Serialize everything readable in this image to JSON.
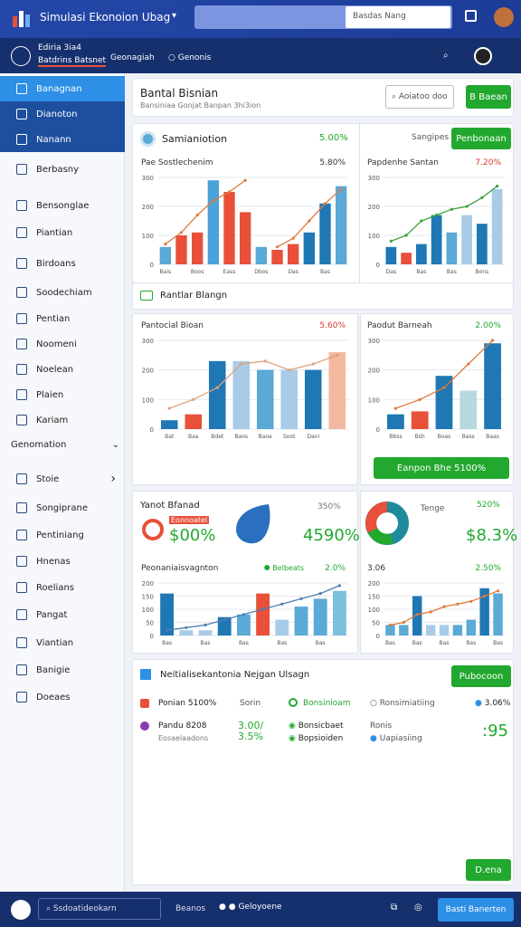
{
  "topbar": {
    "title": "Simulasi Ekonoion Ubag",
    "search": "Basdas Nang"
  },
  "subbar": {
    "line1": "Ediria 3ia4",
    "line2": "Batdrins Batsnet",
    "tab1": "Geonagiah",
    "tab2": "Genonis"
  },
  "sidebar": {
    "items": [
      "Banagnan",
      "Dianoton",
      "Nanann",
      "Berbasny",
      "Bensonglae",
      "Piantian",
      "Birdoans",
      "Soodechiam",
      "Pentian",
      "Noomeni",
      "Noelean",
      "Plaien",
      "Kariam"
    ],
    "section": "Genomation",
    "items2": [
      "Stoie",
      "Songiprane",
      "Pentiniang",
      "Hnenas",
      "Roelians",
      "Pangat",
      "Viantian",
      "Banigie",
      "Doeaes"
    ]
  },
  "header": {
    "title": "Bantal Bisnian",
    "subtitle": "Bansiniaa Gonjat Banpan 3hi3ion",
    "search": "Aoiatoo doo",
    "button": "B Baean"
  },
  "panel1": {
    "title": "Samianiotion",
    "value": "5.00%",
    "right_title": "Sangipes",
    "button": "Penbonaan"
  },
  "section2": {
    "title": "Rantlar Blangn"
  },
  "panel2": {
    "button": "Eanpon Bhe 5100%"
  },
  "panel3": {
    "left_title": "Yanot Bfanad",
    "left_tag": "Eonnoatel",
    "left_value": "$00%",
    "mid_small": "350%",
    "mid_value": "4590%",
    "right_title": "Tenge",
    "right_small": "520%",
    "right_value": "$8.3%"
  },
  "list": {
    "title": "Neitialisekantonia Nejgan Ulsagn",
    "button": "Pubocoon",
    "footer_button": "D.ena",
    "items": [
      "Ponian 5100%",
      "Sorin",
      "Bonsinioam",
      "Ronsimiatiing",
      "3.06%",
      "Pandu 8208",
      "Eosaeiaadons",
      "3.00/",
      "3.5%",
      "Bonsicbaet",
      "Bopsioiden",
      "Ronis",
      "Uapiasiing",
      ":95"
    ]
  },
  "bottombar": {
    "search": "Ssdoatideokarn",
    "link1": "Beanos",
    "link2": "Geloyoene",
    "button": "Basti Banerten"
  },
  "chart_data": [
    {
      "type": "bar",
      "title": "Pae Sostlechenim",
      "value": "5.80%",
      "value_color": "#333333",
      "ylim": [
        0,
        300
      ],
      "yticks": [
        0,
        100,
        200,
        300
      ],
      "categories": [
        "Bais",
        null,
        "Boos",
        null,
        "Eass",
        null,
        "Dbos",
        null,
        "Das",
        null,
        "Bas",
        null
      ],
      "values": [
        60,
        100,
        110,
        290,
        250,
        180,
        60,
        50,
        70,
        110,
        210,
        270
      ],
      "colors": [
        "#5aa9d6",
        "#e8503a",
        "#e8503a",
        "#4aa3d8",
        "#e8503a",
        "#e8503a",
        "#5aa9d6",
        "#e8503a",
        "#e8503a",
        "#1f77b4",
        "#1f77b4",
        "#5aa9d6"
      ],
      "line": [
        70,
        110,
        170,
        220,
        250,
        290,
        null,
        60,
        90,
        150,
        210,
        260
      ],
      "line_color": "#e07a3a"
    },
    {
      "type": "bar",
      "title": "Papdenhe Santan",
      "value": "7.20%",
      "value_color": "#d93a2b",
      "ylim": [
        0,
        300
      ],
      "yticks": [
        0,
        100,
        200,
        300
      ],
      "categories": [
        "Das",
        null,
        "Bas",
        null,
        "Bas",
        null,
        "Bons",
        null
      ],
      "values": [
        60,
        40,
        70,
        170,
        110,
        170,
        140,
        260
      ],
      "colors": [
        "#1f77b4",
        "#e8503a",
        "#1f77b4",
        "#1f77b4",
        "#5aa9d6",
        "#a8cbe8",
        "#1f77b4",
        "#a8cbe8"
      ],
      "line": [
        80,
        100,
        150,
        170,
        190,
        200,
        230,
        270
      ],
      "line_color": "#3aa33a"
    },
    {
      "type": "bar",
      "title": "Pantocial Bioan",
      "value": "5.60%",
      "value_color": "#d93a2b",
      "ylim": [
        0,
        300
      ],
      "yticks": [
        0,
        100,
        200,
        300
      ],
      "categories": [
        "Bat",
        "Baa",
        "Bdet",
        "Baos",
        "Baoe",
        "Soot",
        "Dani",
        null
      ],
      "values": [
        30,
        50,
        230,
        230,
        200,
        200,
        200,
        260
      ],
      "colors": [
        "#1f77b4",
        "#e8503a",
        "#1f77b4",
        "#a8cbe8",
        "#5aa9d6",
        "#a8cbe8",
        "#1f77b4",
        "#f2b8a0"
      ],
      "line": [
        70,
        100,
        140,
        220,
        230,
        200,
        220,
        250
      ],
      "line_color": "#e0a080"
    },
    {
      "type": "bar",
      "title": "Paodut Barneah",
      "value": "2.00%",
      "value_color": "#22a82e",
      "ylim": [
        0,
        300
      ],
      "yticks": [
        0,
        100,
        200,
        300
      ],
      "categories": [
        "Bbss",
        "Bsh",
        "Boas",
        "Bass",
        "Baas"
      ],
      "values": [
        50,
        60,
        180,
        130,
        290
      ],
      "colors": [
        "#1f77b4",
        "#e8503a",
        "#1f77b4",
        "#b8d8e0",
        "#1f77b4"
      ],
      "line": [
        70,
        100,
        140,
        220,
        300
      ],
      "line_color": "#e07a3a"
    },
    {
      "type": "bar",
      "title": "Peonaniaisvagnton",
      "value": "2.0%",
      "value_color": "#22a82e",
      "tag": "Belbeats",
      "ylim": [
        0,
        200
      ],
      "yticks": [
        0,
        50,
        100,
        150,
        200
      ],
      "categories": [
        "Bas",
        null,
        "Bas",
        null,
        "Bas",
        null,
        "Bas",
        null,
        "Bas",
        null
      ],
      "values": [
        160,
        20,
        20,
        70,
        80,
        160,
        60,
        110,
        140,
        170
      ],
      "colors": [
        "#1f77b4",
        "#a8cbe8",
        "#a8cbe8",
        "#1f77b4",
        "#5aa9d6",
        "#e8503a",
        "#a8cbe8",
        "#5aa9d6",
        "#5aa9d6",
        "#7cc0e0"
      ],
      "line": [
        20,
        30,
        40,
        60,
        80,
        100,
        120,
        140,
        160,
        190
      ],
      "line_color": "#4a7fb0"
    },
    {
      "type": "bar",
      "title": "3.06",
      "value": "2.50%",
      "value_color": "#22a82e",
      "ylim": [
        0,
        200
      ],
      "yticks": [
        0,
        50,
        100,
        150,
        200
      ],
      "categories": [
        "Bas",
        null,
        "Bas",
        null,
        "Bas",
        null,
        "Bas",
        null,
        "Bas"
      ],
      "values": [
        40,
        40,
        150,
        40,
        40,
        40,
        60,
        180,
        160
      ],
      "colors": [
        "#5aa9d6",
        "#5aa9d6",
        "#1f77b4",
        "#a8cbe8",
        "#a8cbe8",
        "#5aa9d6",
        "#5aa9d6",
        "#1f77b4",
        "#5aa9d6"
      ],
      "line": [
        40,
        50,
        80,
        90,
        110,
        120,
        130,
        150,
        170
      ],
      "line_color": "#e07a3a"
    }
  ]
}
